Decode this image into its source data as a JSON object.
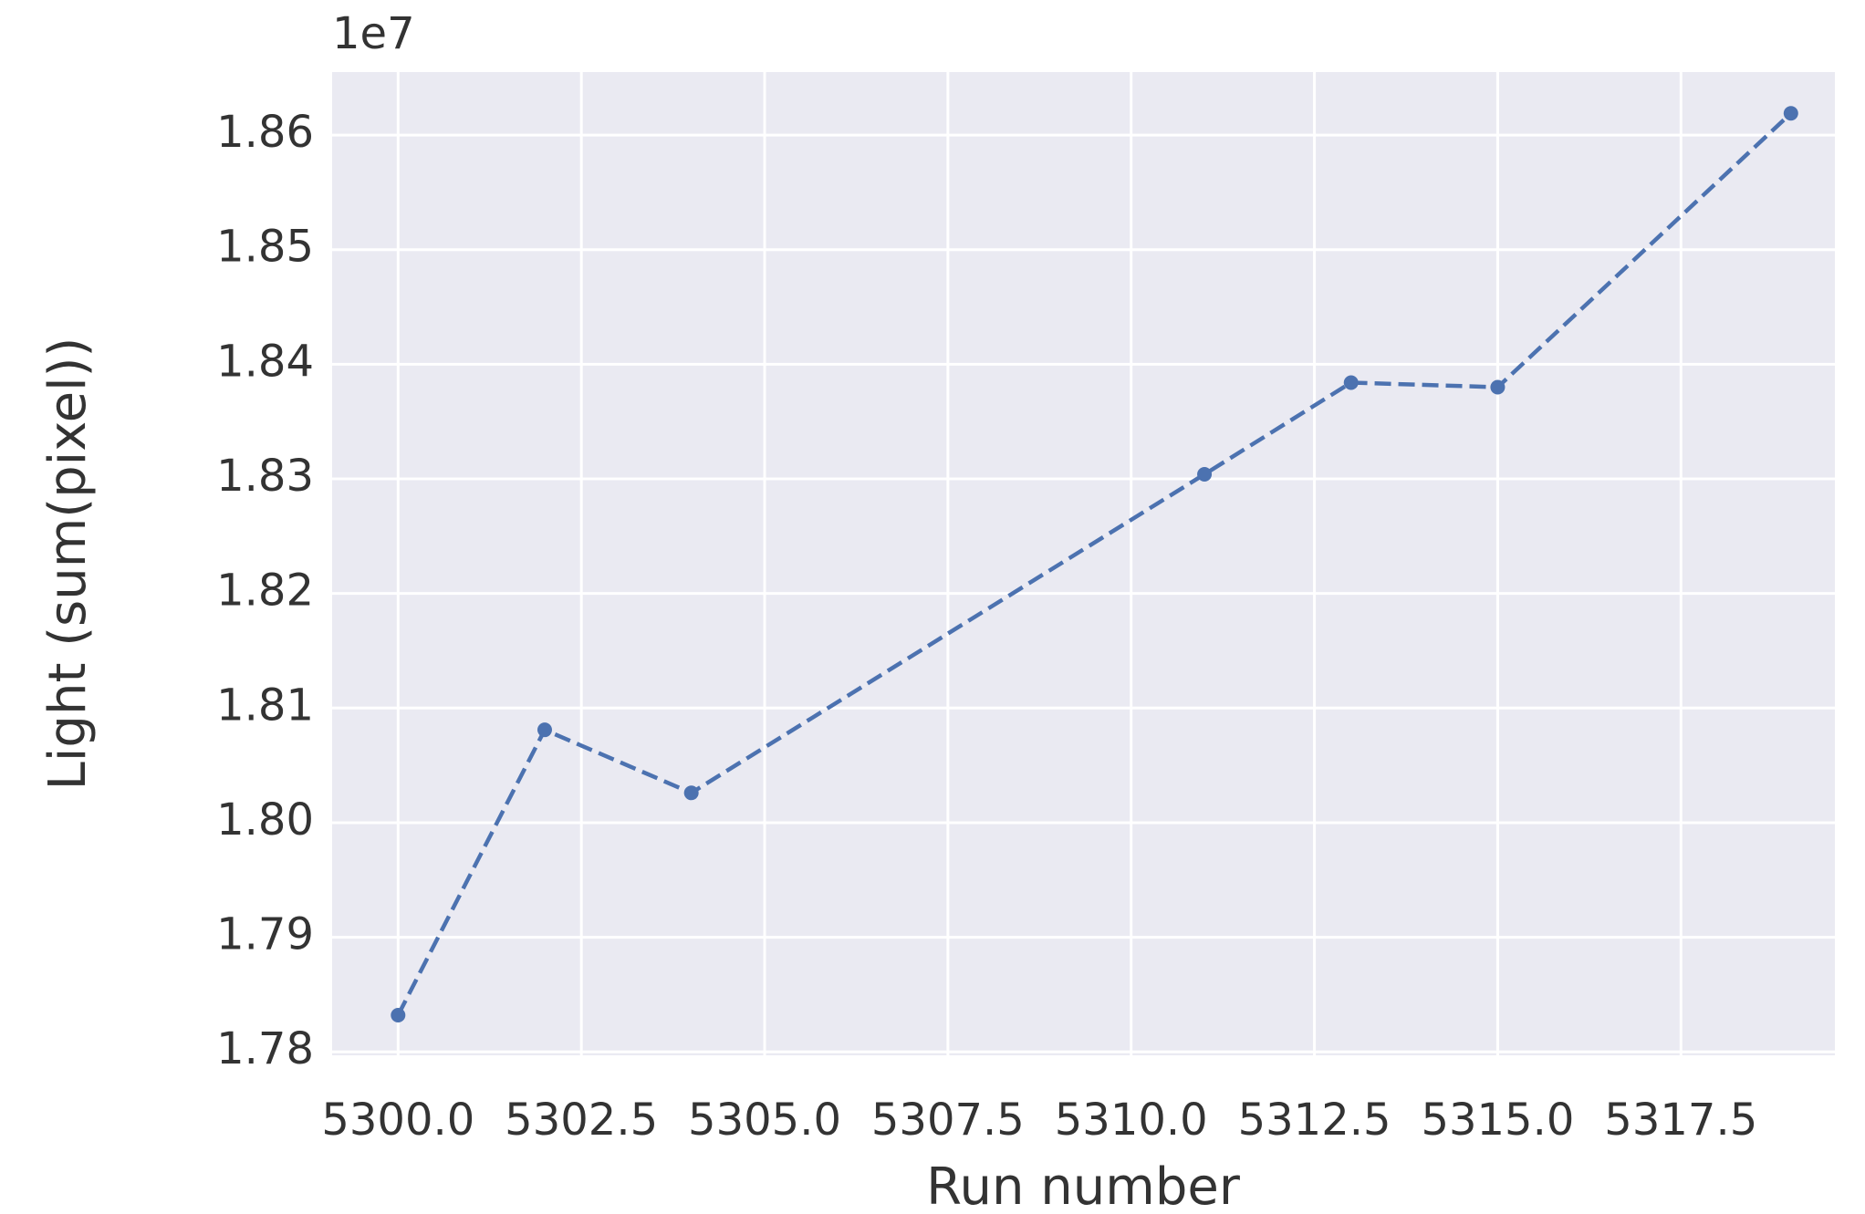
{
  "chart_data": {
    "type": "line",
    "x_label": "Run number",
    "y_label": "Light (sum(pixel))",
    "y_offset_label": "1e7",
    "x": [
      5300,
      5302,
      5304,
      5311,
      5313,
      5315,
      5319
    ],
    "series": [
      {
        "color": "#4c72b0",
        "values": [
          1.7832,
          1.8081,
          1.8026,
          1.8304,
          1.8384,
          1.838,
          1.8619
        ]
      }
    ],
    "xlim": [
      5299.1,
      5319.6
    ],
    "ylim": [
      1.7797,
      1.8655
    ],
    "xticks": [
      {
        "value": 5300,
        "label": "5300.0"
      },
      {
        "value": 5302.5,
        "label": "5302.5"
      },
      {
        "value": 5305,
        "label": "5305.0"
      },
      {
        "value": 5307.5,
        "label": "5307.5"
      },
      {
        "value": 5310,
        "label": "5310.0"
      },
      {
        "value": 5312.5,
        "label": "5312.5"
      },
      {
        "value": 5315,
        "label": "5315.0"
      },
      {
        "value": 5317.5,
        "label": "5317.5"
      }
    ],
    "yticks": [
      1.78,
      1.79,
      {
        "value": 1.8,
        "label": "1.80"
      },
      1.81,
      1.82,
      1.83,
      1.84,
      1.85,
      1.86
    ],
    "grid": true,
    "line_style": "dashed",
    "marker": "o"
  }
}
